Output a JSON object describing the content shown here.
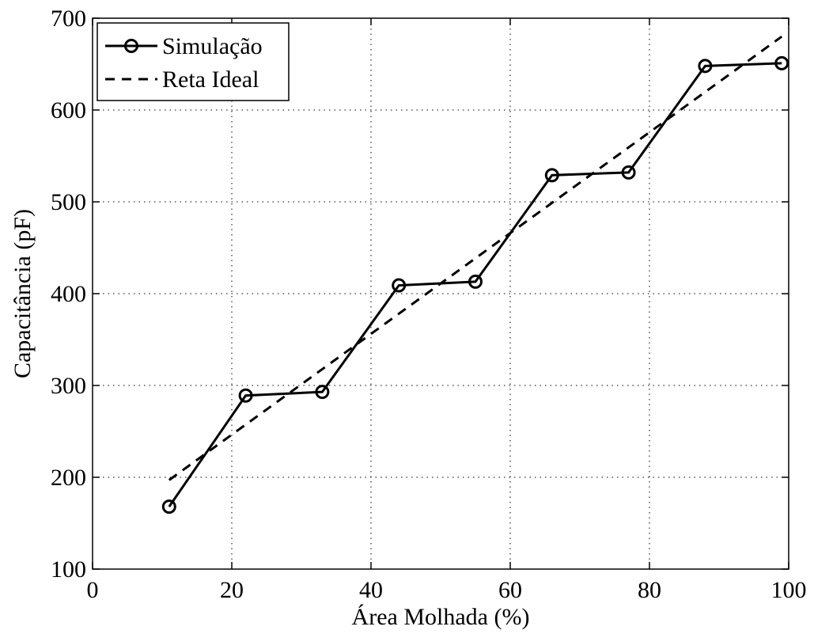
{
  "chart_data": {
    "type": "line",
    "xlabel": "Área Molhada (%)",
    "ylabel": "Capacitância (pF)",
    "xlim": [
      0,
      100
    ],
    "ylim": [
      100,
      700
    ],
    "xticks": [
      0,
      20,
      40,
      60,
      80,
      100
    ],
    "yticks": [
      100,
      200,
      300,
      400,
      500,
      600,
      700
    ],
    "xtick_labels": [
      "0",
      "20",
      "40",
      "60",
      "80",
      "100"
    ],
    "ytick_labels": [
      "100",
      "200",
      "300",
      "400",
      "500",
      "600",
      "700"
    ],
    "grid": true,
    "legend_position": "top-left",
    "series": [
      {
        "name": "Simulação",
        "style": "solid",
        "marker": "circle",
        "color": "#000000",
        "x": [
          11,
          22,
          33,
          44,
          55,
          66,
          77,
          88,
          99
        ],
        "y": [
          168,
          289,
          293,
          409,
          413,
          529,
          532,
          648,
          651
        ]
      },
      {
        "name": "Reta Ideal",
        "style": "dashed",
        "marker": "none",
        "color": "#000000",
        "x": [
          11,
          99
        ],
        "y": [
          197,
          680
        ]
      }
    ]
  }
}
